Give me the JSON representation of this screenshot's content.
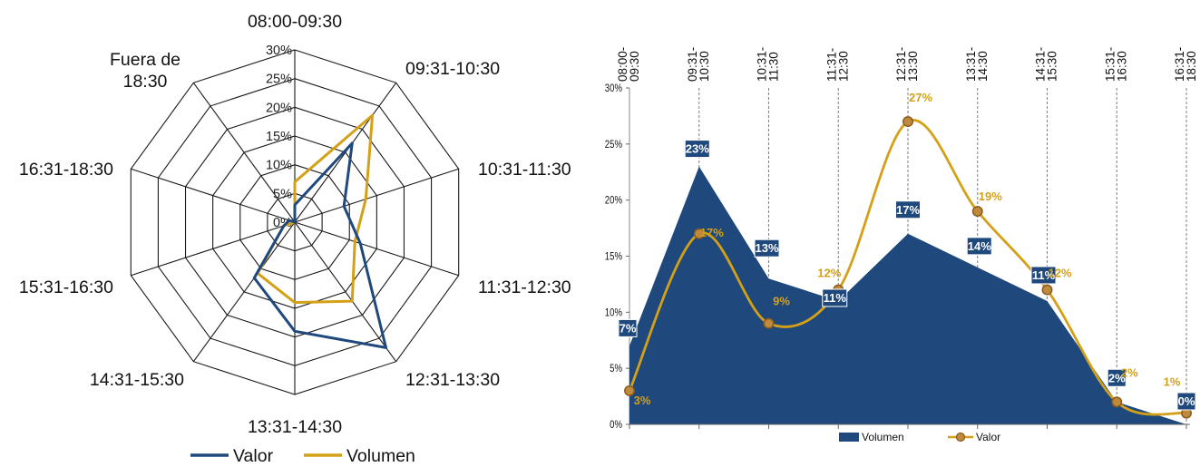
{
  "chart_data": [
    {
      "type": "radar",
      "categories": [
        "08:00-09:30",
        "09:31-10:30",
        "10:31-11:30",
        "11:31-12:30",
        "12:31-13:30",
        "13:31-14:30",
        "14:31-15:30",
        "15:31-16:30",
        "16:31-18:30",
        "Fuera de 18:30"
      ],
      "axis_ticks": [
        "0%",
        "5%",
        "10%",
        "15%",
        "20%",
        "25%",
        "30%"
      ],
      "rlim": [
        0,
        30
      ],
      "grid": true,
      "legend_position": "bottom",
      "series": [
        {
          "name": "Valor",
          "color": "#1f497d",
          "values": [
            3,
            17,
            9,
            12,
            27,
            19,
            12,
            2,
            1,
            0
          ]
        },
        {
          "name": "Volumen",
          "color": "#d4a017",
          "values": [
            7,
            23,
            13,
            11,
            17,
            14,
            11,
            2,
            0,
            0
          ]
        }
      ]
    },
    {
      "type": "area",
      "categories": [
        "08:00-09:30",
        "09:31-10:30",
        "10:31-11:30",
        "11:31-12:30",
        "12:31-13:30",
        "13:31-14:30",
        "14:31-15:30",
        "15:31-16:30",
        "16:31-18:30"
      ],
      "y_ticks": [
        "0%",
        "5%",
        "10%",
        "15%",
        "20%",
        "25%",
        "30%"
      ],
      "ylim": [
        0,
        30
      ],
      "grid": "vertical dashed",
      "legend_position": "bottom",
      "series": [
        {
          "name": "Volumen",
          "type": "area",
          "color": "#1f497d",
          "values": [
            7,
            23,
            13,
            11,
            17,
            14,
            11,
            2,
            0
          ],
          "labels": [
            "7%",
            "23%",
            "13%",
            "11%",
            "17%",
            "14%",
            "11%",
            "2%",
            "0%"
          ]
        },
        {
          "name": "Valor",
          "type": "line",
          "color": "#d4a017",
          "values": [
            3,
            17,
            9,
            12,
            27,
            19,
            12,
            2,
            1
          ],
          "labels": [
            "3%",
            "17%",
            "9%",
            "12%",
            "27%",
            "19%",
            "12%",
            "2%",
            "1%"
          ]
        }
      ]
    }
  ]
}
